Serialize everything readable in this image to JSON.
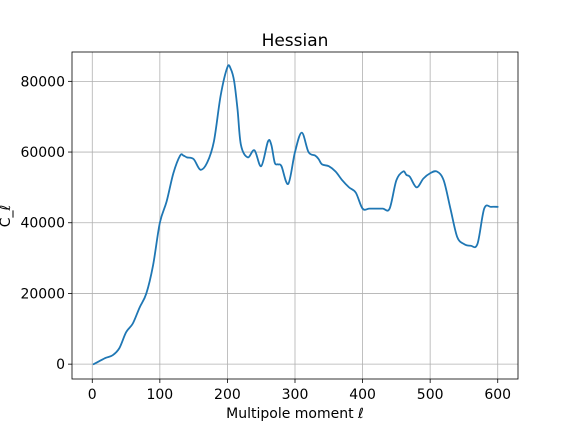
{
  "chart_data": {
    "type": "line",
    "title": "Hessian",
    "xlabel": "Multipole moment ℓ",
    "ylabel": "C_ℓ",
    "xlim": [
      -30,
      630
    ],
    "ylim": [
      -4200,
      88300
    ],
    "xticks": [
      0,
      100,
      200,
      300,
      400,
      500,
      600
    ],
    "yticks": [
      0,
      20000,
      40000,
      60000,
      80000
    ],
    "xtick_labels": [
      "0",
      "100",
      "200",
      "300",
      "400",
      "500",
      "600"
    ],
    "ytick_labels": [
      "0",
      "20000",
      "40000",
      "60000",
      "80000"
    ],
    "grid": true,
    "series": [
      {
        "color": "#1f77b4",
        "x": [
          2,
          10,
          20,
          30,
          40,
          50,
          60,
          70,
          80,
          90,
          100,
          110,
          120,
          130,
          135,
          140,
          150,
          160,
          170,
          180,
          190,
          200,
          205,
          210,
          215,
          220,
          230,
          240,
          250,
          260,
          265,
          270,
          275,
          280,
          290,
          300,
          310,
          320,
          330,
          335,
          340,
          350,
          360,
          370,
          380,
          390,
          400,
          410,
          420,
          430,
          440,
          450,
          460,
          465,
          470,
          480,
          490,
          500,
          510,
          520,
          530,
          540,
          550,
          560,
          570,
          580,
          590,
          600
        ],
        "y": [
          0,
          800,
          1800,
          2500,
          4500,
          9000,
          11500,
          16000,
          20000,
          28000,
          40000,
          46000,
          54000,
          59000,
          59000,
          58500,
          58000,
          55000,
          57000,
          63000,
          76000,
          84000,
          83500,
          80000,
          72000,
          62000,
          58500,
          60500,
          56000,
          63000,
          62000,
          57000,
          56500,
          56000,
          51000,
          60000,
          65500,
          60000,
          59000,
          58000,
          56500,
          56000,
          54500,
          52000,
          50000,
          48500,
          44000,
          44000,
          44000,
          44000,
          44000,
          52000,
          54500,
          53500,
          53000,
          50000,
          52500,
          54000,
          54500,
          52000,
          44000,
          36000,
          34000,
          33500,
          34000,
          44000,
          44500,
          44500
        ]
      }
    ]
  }
}
